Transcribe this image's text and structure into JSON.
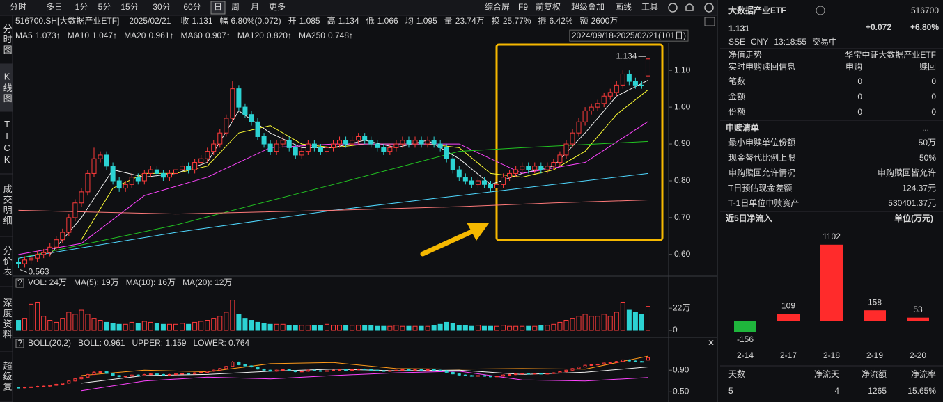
{
  "toolbar": {
    "periods": [
      "分时",
      "多日",
      "1分",
      "5分",
      "15分",
      "30分",
      "60分",
      "日",
      "周",
      "月",
      "更多"
    ],
    "selected_period": 7,
    "tools": [
      "综合屏",
      "F9",
      "前复权",
      "超级叠加",
      "画线",
      "工具"
    ]
  },
  "side_tabs": [
    "分时图",
    "K线图",
    "TICK",
    "成交明细",
    "分价表",
    "深度资料",
    "超级复"
  ],
  "selected_side_tab": 1,
  "quote_bar": {
    "code": "516700.SH[大数据产业ETF]",
    "date": "2025/02/21",
    "items": [
      {
        "label": "收",
        "value": "1.131",
        "color": "#ff3b3b"
      },
      {
        "label": "幅",
        "value": "6.80%(0.072)",
        "color": "#ff3b3b"
      },
      {
        "label": "开",
        "value": "1.085",
        "color": "#ff3b3b"
      },
      {
        "label": "高",
        "value": "1.134",
        "color": "#ff3b3b"
      },
      {
        "label": "低",
        "value": "1.066",
        "color": "#ff3b3b"
      },
      {
        "label": "均",
        "value": "1.095",
        "color": "#ff3b3b"
      },
      {
        "label": "量",
        "value": "23.74万",
        "color": "#e6e6e6"
      },
      {
        "label": "换",
        "value": "25.77%",
        "color": "#e6e6e6"
      },
      {
        "label": "振",
        "value": "6.42%",
        "color": "#e6e6e6"
      },
      {
        "label": "额",
        "value": "2600万",
        "color": "#e6e6e6"
      }
    ]
  },
  "chart_data": [
    {
      "type": "candlestick",
      "range_label": "2024/09/18-2025/02/21(101日)",
      "up_color": "#ff3b3b",
      "down_color": "#2cd3d3",
      "open": [
        0.58,
        0.575,
        0.585,
        0.59,
        0.6,
        0.605,
        0.62,
        0.64,
        0.66,
        0.7,
        0.74,
        0.77,
        0.82,
        0.86,
        0.87,
        0.84,
        0.8,
        0.78,
        0.79,
        0.81,
        0.8,
        0.82,
        0.83,
        0.82,
        0.81,
        0.82,
        0.83,
        0.84,
        0.83,
        0.85,
        0.86,
        0.88,
        0.9,
        0.93,
        0.97,
        1.05,
        1.0,
        0.98,
        0.96,
        0.92,
        0.9,
        0.88,
        0.9,
        0.91,
        0.89,
        0.87,
        0.88,
        0.9,
        0.89,
        0.88,
        0.89,
        0.9,
        0.91,
        0.9,
        0.91,
        0.92,
        0.91,
        0.9,
        0.89,
        0.88,
        0.89,
        0.9,
        0.91,
        0.9,
        0.91,
        0.9,
        0.91,
        0.9,
        0.89,
        0.86,
        0.83,
        0.81,
        0.8,
        0.79,
        0.8,
        0.79,
        0.78,
        0.79,
        0.81,
        0.82,
        0.83,
        0.84,
        0.83,
        0.84,
        0.83,
        0.84,
        0.85,
        0.87,
        0.9,
        0.93,
        0.96,
        0.99,
        1.0,
        1.01,
        1.03,
        1.04,
        1.06,
        1.09,
        1.07,
        1.06,
        1.085
      ],
      "high": [
        0.59,
        0.595,
        0.6,
        0.61,
        0.615,
        0.63,
        0.65,
        0.67,
        0.71,
        0.75,
        0.78,
        0.83,
        0.89,
        0.88,
        0.88,
        0.85,
        0.81,
        0.8,
        0.82,
        0.82,
        0.83,
        0.84,
        0.84,
        0.83,
        0.83,
        0.84,
        0.85,
        0.85,
        0.86,
        0.87,
        0.89,
        0.91,
        0.94,
        0.98,
        1.07,
        1.06,
        1.01,
        0.99,
        0.97,
        0.93,
        0.91,
        0.91,
        0.92,
        0.92,
        0.9,
        0.89,
        0.91,
        0.91,
        0.9,
        0.9,
        0.91,
        0.92,
        0.92,
        0.92,
        0.93,
        0.93,
        0.92,
        0.91,
        0.9,
        0.9,
        0.91,
        0.92,
        0.92,
        0.92,
        0.92,
        0.92,
        0.92,
        0.91,
        0.9,
        0.87,
        0.84,
        0.82,
        0.81,
        0.81,
        0.81,
        0.8,
        0.8,
        0.82,
        0.83,
        0.84,
        0.85,
        0.85,
        0.85,
        0.85,
        0.85,
        0.86,
        0.88,
        0.91,
        0.94,
        0.97,
        1.0,
        1.01,
        1.02,
        1.04,
        1.05,
        1.07,
        1.1,
        1.1,
        1.08,
        1.07,
        1.134
      ],
      "low": [
        0.563,
        0.565,
        0.575,
        0.58,
        0.59,
        0.595,
        0.61,
        0.63,
        0.65,
        0.69,
        0.73,
        0.76,
        0.81,
        0.85,
        0.83,
        0.79,
        0.77,
        0.77,
        0.78,
        0.79,
        0.79,
        0.81,
        0.81,
        0.8,
        0.8,
        0.81,
        0.82,
        0.82,
        0.82,
        0.84,
        0.85,
        0.87,
        0.89,
        0.92,
        0.96,
        0.99,
        0.97,
        0.95,
        0.91,
        0.89,
        0.87,
        0.87,
        0.89,
        0.88,
        0.86,
        0.86,
        0.87,
        0.88,
        0.87,
        0.87,
        0.88,
        0.89,
        0.89,
        0.89,
        0.9,
        0.9,
        0.89,
        0.88,
        0.87,
        0.87,
        0.88,
        0.89,
        0.89,
        0.89,
        0.89,
        0.89,
        0.89,
        0.88,
        0.85,
        0.82,
        0.8,
        0.79,
        0.78,
        0.78,
        0.78,
        0.77,
        0.77,
        0.78,
        0.8,
        0.81,
        0.82,
        0.82,
        0.82,
        0.82,
        0.82,
        0.83,
        0.84,
        0.86,
        0.89,
        0.92,
        0.95,
        0.98,
        0.99,
        1.0,
        1.02,
        1.03,
        1.05,
        1.06,
        1.05,
        1.05,
        1.066
      ],
      "close": [
        0.575,
        0.585,
        0.59,
        0.6,
        0.605,
        0.62,
        0.64,
        0.66,
        0.7,
        0.74,
        0.77,
        0.82,
        0.86,
        0.87,
        0.84,
        0.8,
        0.78,
        0.79,
        0.81,
        0.8,
        0.82,
        0.83,
        0.82,
        0.81,
        0.82,
        0.83,
        0.84,
        0.83,
        0.85,
        0.86,
        0.88,
        0.9,
        0.93,
        0.97,
        1.05,
        1.0,
        0.98,
        0.96,
        0.92,
        0.9,
        0.88,
        0.9,
        0.91,
        0.89,
        0.87,
        0.88,
        0.9,
        0.89,
        0.88,
        0.89,
        0.9,
        0.91,
        0.9,
        0.91,
        0.92,
        0.91,
        0.9,
        0.89,
        0.88,
        0.89,
        0.9,
        0.91,
        0.9,
        0.91,
        0.9,
        0.91,
        0.9,
        0.89,
        0.86,
        0.83,
        0.81,
        0.8,
        0.79,
        0.8,
        0.79,
        0.78,
        0.79,
        0.81,
        0.82,
        0.83,
        0.84,
        0.83,
        0.84,
        0.83,
        0.84,
        0.85,
        0.87,
        0.9,
        0.93,
        0.96,
        0.99,
        1.0,
        1.01,
        1.03,
        1.04,
        1.06,
        1.09,
        1.07,
        1.06,
        1.059,
        1.131
      ],
      "ylim": [
        0.545,
        1.174
      ],
      "yticks": [
        {
          "value": 0.6,
          "label": "0.60"
        },
        {
          "value": 0.7,
          "label": "0.70"
        },
        {
          "value": 0.8,
          "label": "0.80"
        },
        {
          "value": 0.9,
          "label": "0.90"
        },
        {
          "value": 1.0,
          "label": "1.00"
        },
        {
          "value": 1.1,
          "label": "1.10"
        }
      ],
      "ma": [
        {
          "name": "MA5",
          "legend_value": "1.073↑",
          "color": "#f2f2f2",
          "legend_color": "#ffb020",
          "x": [
            5,
            10,
            15,
            20,
            25,
            30,
            35,
            40,
            45,
            50,
            55,
            60,
            65,
            70,
            75,
            80,
            85,
            90,
            95,
            100
          ],
          "values": [
            0.6,
            0.7,
            0.83,
            0.81,
            0.82,
            0.85,
            0.99,
            0.93,
            0.89,
            0.89,
            0.91,
            0.89,
            0.91,
            0.86,
            0.79,
            0.82,
            0.84,
            0.93,
            1.03,
            1.073
          ]
        },
        {
          "name": "MA10",
          "legend_value": "1.047↑",
          "color": "#ffff33",
          "legend_color": "#ffff33",
          "x": [
            10,
            15,
            20,
            25,
            30,
            35,
            40,
            45,
            50,
            55,
            60,
            65,
            70,
            75,
            80,
            85,
            90,
            95,
            100
          ],
          "values": [
            0.64,
            0.78,
            0.82,
            0.82,
            0.84,
            0.93,
            0.95,
            0.9,
            0.89,
            0.9,
            0.9,
            0.9,
            0.89,
            0.82,
            0.81,
            0.83,
            0.88,
            0.98,
            1.047
          ]
        },
        {
          "name": "MA20",
          "legend_value": "0.961↑",
          "color": "#ff44ff",
          "legend_color": "#ff44ff",
          "x": [
            0,
            10,
            20,
            30,
            40,
            50,
            60,
            70,
            80,
            90,
            100
          ],
          "values": [
            0.6,
            0.63,
            0.76,
            0.81,
            0.89,
            0.9,
            0.9,
            0.9,
            0.82,
            0.85,
            0.961
          ]
        },
        {
          "name": "MA60",
          "legend_value": "0.907↑",
          "color": "#22c522",
          "legend_color": "#22dd22",
          "x": [
            0,
            25,
            50,
            70,
            80,
            100
          ],
          "values": [
            0.59,
            0.68,
            0.79,
            0.88,
            0.89,
            0.907
          ]
        },
        {
          "name": "MA120",
          "legend_value": "0.820↑",
          "color": "#4fd8ff",
          "legend_color": "#4fd8ff",
          "x": [
            0,
            25,
            50,
            70,
            85,
            100
          ],
          "values": [
            0.59,
            0.66,
            0.72,
            0.76,
            0.79,
            0.82
          ]
        },
        {
          "name": "MA250",
          "legend_value": "0.748↑",
          "color": "#ff7a7a",
          "legend_color": "#ff7a7a",
          "x": [
            0,
            25,
            50,
            70,
            85,
            100
          ],
          "values": [
            0.72,
            0.71,
            0.72,
            0.73,
            0.74,
            0.748
          ]
        }
      ],
      "volume": {
        "legend": [
          {
            "text": "VOL: 24万",
            "color": "#e6e6e6"
          },
          {
            "text": "MA(5): 19万",
            "color": "#e6e6e6"
          },
          {
            "text": "MA(10): 16万",
            "color": "#ff9a1a"
          },
          {
            "text": "MA(20): 12万",
            "color": "#ff44ff"
          }
        ],
        "values": [
          10,
          12,
          26,
          28,
          14,
          10,
          8,
          12,
          18,
          16,
          20,
          16,
          12,
          10,
          8,
          7,
          6,
          6,
          8,
          7,
          9,
          8,
          7,
          6,
          6,
          6,
          7,
          6,
          8,
          9,
          10,
          12,
          14,
          18,
          30,
          16,
          12,
          10,
          8,
          7,
          6,
          6,
          6,
          5,
          5,
          5,
          5,
          5,
          5,
          6,
          5,
          5,
          5,
          5,
          5,
          5,
          5,
          4,
          4,
          4,
          5,
          4,
          4,
          4,
          4,
          4,
          5,
          6,
          8,
          7,
          5,
          5,
          4,
          5,
          4,
          4,
          4,
          5,
          4,
          4,
          4,
          4,
          4,
          5,
          5,
          6,
          8,
          10,
          12,
          14,
          16,
          14,
          14,
          16,
          14,
          18,
          28,
          20,
          18,
          16,
          23.74
        ],
        "ylim": [
          0,
          38
        ],
        "yticks": [
          0,
          {
            "value": 22,
            "label": "22万"
          }
        ]
      },
      "boll": {
        "legend": [
          {
            "text": "BOLL(20,2)",
            "color": "#e6e6e6"
          },
          {
            "text": "BOLL: 0.961",
            "color": "#e6e6e6"
          },
          {
            "text": "UPPER: 1.159",
            "color": "#ff9a1a"
          },
          {
            "text": "LOWER: 0.764",
            "color": "#ff44ff"
          }
        ],
        "ylim": [
          0.35,
          1.25
        ],
        "yticks": [
          {
            "value": 0.5,
            "label": "0.50"
          },
          {
            "value": 0.9,
            "label": "0.90"
          }
        ],
        "series": [
          {
            "name": "UPPER",
            "color": "#ff9a1a",
            "x": [
              10,
              20,
              30,
              40,
              50,
              60,
              70,
              80,
              90,
              100
            ],
            "values": [
              0.8,
              0.9,
              0.87,
              1.02,
              1.04,
              0.93,
              0.92,
              0.93,
              0.92,
              1.159
            ]
          },
          {
            "name": "BOLL",
            "color": "#f2f2f2",
            "x": [
              10,
              20,
              30,
              40,
              50,
              60,
              70,
              80,
              90,
              100
            ],
            "values": [
              0.66,
              0.8,
              0.82,
              0.88,
              0.92,
              0.89,
              0.9,
              0.82,
              0.86,
              0.961
            ]
          },
          {
            "name": "LOWER",
            "color": "#ff44ff",
            "x": [
              10,
              20,
              30,
              40,
              50,
              60,
              70,
              80,
              90,
              100
            ],
            "values": [
              0.52,
              0.7,
              0.77,
              0.74,
              0.8,
              0.85,
              0.88,
              0.72,
              0.7,
              0.764
            ]
          }
        ]
      }
    },
    {
      "type": "bar",
      "title": "近5日净流入",
      "unit": "单位(万元)",
      "categories": [
        "2-14",
        "2-17",
        "2-18",
        "2-19",
        "2-20"
      ],
      "values": [
        -156,
        109,
        1102,
        158,
        53
      ],
      "up_color": "#ff2b2b",
      "down_color": "#1fb53c",
      "label_color": "#ff4a4a",
      "ylim": [
        -280,
        1200
      ]
    }
  ],
  "quote_panel": {
    "name": "大数据产业ETF",
    "code": "516700",
    "price": "1.131",
    "change": "+0.072",
    "change_pct": "+6.80%",
    "exchange": "SSE",
    "currency": "CNY",
    "time": "13:18:55",
    "status": "交易中"
  },
  "nav_rows": [
    [
      "净值走势",
      "华宝中证大数据产业ETF"
    ],
    [
      "实时申购赎回信息",
      "申购",
      "赎回"
    ],
    [
      "笔数",
      0,
      0
    ],
    [
      "金额",
      0,
      0
    ],
    [
      "份额",
      0,
      0
    ]
  ],
  "list_title": "申赎清单",
  "list_more": "...",
  "list_rows": [
    [
      "最小申赎单位份额",
      "50万"
    ],
    [
      "现金替代比例上限",
      "50%"
    ],
    [
      "申购赎回允许情况",
      "申购赎回皆允许"
    ],
    [
      "T日预估现金差额",
      "124.37元"
    ],
    [
      "T-1日单位申赎资产",
      "530401.37元"
    ]
  ],
  "summary": {
    "headers": [
      "天数",
      "净流天",
      "净流额",
      "净流率"
    ],
    "values": [
      5,
      4,
      1265,
      "15.65%"
    ],
    "colors": [
      "#e6e6e6",
      "#ff3b3b",
      "#ff3b3b",
      "#ff3b3b"
    ]
  }
}
